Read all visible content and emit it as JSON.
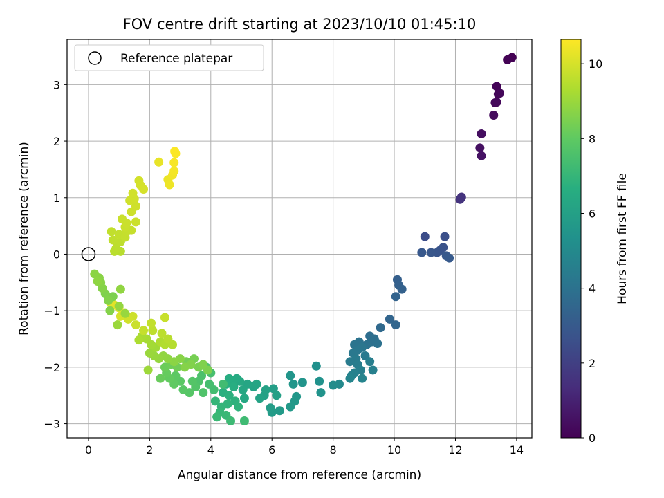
{
  "chart_data": {
    "type": "scatter",
    "title": "FOV centre drift starting at 2023/10/10 01:45:10",
    "xlabel": "Angular distance from reference (arcmin)",
    "ylabel": "Rotation from reference (arcmin)",
    "xlim": [
      -0.7,
      14.5
    ],
    "ylim": [
      -3.25,
      3.8
    ],
    "xticks": [
      0,
      2,
      4,
      6,
      8,
      10,
      12,
      14
    ],
    "yticks": [
      -3,
      -2,
      -1,
      0,
      1,
      2,
      3
    ],
    "xtick_labels": [
      "0",
      "2",
      "4",
      "6",
      "8",
      "10",
      "12",
      "14"
    ],
    "ytick_labels": [
      "−3",
      "−2",
      "−1",
      "0",
      "1",
      "2",
      "3"
    ],
    "grid": true,
    "colormap": "viridis",
    "colorbar": {
      "label": "Hours from first FF file",
      "range": [
        0,
        10.65
      ],
      "ticks": [
        0,
        2,
        4,
        6,
        8,
        10
      ],
      "tick_labels": [
        "0",
        "2",
        "4",
        "6",
        "8",
        "10"
      ]
    },
    "legend": {
      "location": "upper-left",
      "entries": [
        "Reference platepar"
      ]
    },
    "reference_point": {
      "x": 0,
      "y": 0
    },
    "points": [
      [
        13.85,
        3.48,
        0.0
      ],
      [
        13.7,
        3.44,
        0.05
      ],
      [
        13.35,
        2.97,
        0.1
      ],
      [
        13.4,
        2.83,
        0.15
      ],
      [
        13.45,
        2.85,
        0.18
      ],
      [
        13.3,
        2.68,
        0.22
      ],
      [
        13.35,
        2.69,
        0.25
      ],
      [
        13.25,
        2.46,
        0.3
      ],
      [
        12.85,
        2.13,
        0.4
      ],
      [
        12.8,
        1.88,
        0.45
      ],
      [
        12.85,
        1.74,
        0.5
      ],
      [
        12.2,
        1.01,
        1.5
      ],
      [
        12.15,
        0.97,
        1.55
      ],
      [
        12.18,
        0.99,
        1.6
      ],
      [
        11.0,
        0.31,
        2.5
      ],
      [
        11.65,
        0.31,
        2.6
      ],
      [
        11.6,
        0.12,
        2.7
      ],
      [
        11.5,
        0.07,
        2.75
      ],
      [
        11.4,
        0.03,
        2.8
      ],
      [
        11.2,
        0.03,
        2.85
      ],
      [
        10.9,
        0.03,
        2.9
      ],
      [
        11.7,
        -0.03,
        2.95
      ],
      [
        11.8,
        -0.07,
        3.0
      ],
      [
        10.1,
        -0.45,
        3.2
      ],
      [
        10.15,
        -0.55,
        3.25
      ],
      [
        10.25,
        -0.62,
        3.3
      ],
      [
        10.05,
        -0.75,
        3.35
      ],
      [
        9.85,
        -1.15,
        3.45
      ],
      [
        10.05,
        -1.25,
        3.5
      ],
      [
        9.55,
        -1.3,
        3.6
      ],
      [
        9.2,
        -1.45,
        3.8
      ],
      [
        9.35,
        -1.5,
        3.85
      ],
      [
        9.25,
        -1.55,
        3.9
      ],
      [
        9.45,
        -1.58,
        3.95
      ],
      [
        9.1,
        -1.6,
        4.0
      ],
      [
        8.85,
        -1.55,
        4.05
      ],
      [
        8.7,
        -1.6,
        4.1
      ],
      [
        8.95,
        -1.65,
        4.15
      ],
      [
        8.8,
        -1.7,
        4.2
      ],
      [
        8.65,
        -1.75,
        4.25
      ],
      [
        9.05,
        -1.8,
        4.3
      ],
      [
        8.75,
        -1.85,
        4.35
      ],
      [
        8.55,
        -1.9,
        4.4
      ],
      [
        8.8,
        -1.95,
        4.45
      ],
      [
        9.2,
        -1.9,
        4.5
      ],
      [
        8.9,
        -2.05,
        4.55
      ],
      [
        9.3,
        -2.05,
        4.6
      ],
      [
        8.7,
        -2.1,
        4.65
      ],
      [
        8.6,
        -2.15,
        4.7
      ],
      [
        8.95,
        -2.2,
        4.75
      ],
      [
        8.55,
        -2.2,
        4.8
      ],
      [
        8.2,
        -2.3,
        5.0
      ],
      [
        8.0,
        -2.32,
        5.1
      ],
      [
        7.45,
        -1.98,
        5.3
      ],
      [
        7.55,
        -2.25,
        5.35
      ],
      [
        7.6,
        -2.45,
        5.4
      ],
      [
        7.0,
        -2.27,
        5.45
      ],
      [
        6.6,
        -2.15,
        5.5
      ],
      [
        6.7,
        -2.3,
        5.55
      ],
      [
        6.8,
        -2.52,
        5.6
      ],
      [
        6.75,
        -2.6,
        5.65
      ],
      [
        6.6,
        -2.7,
        5.7
      ],
      [
        6.25,
        -2.77,
        5.75
      ],
      [
        6.0,
        -2.8,
        5.8
      ],
      [
        5.95,
        -2.72,
        5.85
      ],
      [
        6.05,
        -2.38,
        5.9
      ],
      [
        6.15,
        -2.5,
        5.95
      ],
      [
        5.75,
        -2.5,
        6.0
      ],
      [
        5.8,
        -2.4,
        6.05
      ],
      [
        5.6,
        -2.55,
        6.1
      ],
      [
        5.4,
        -2.35,
        6.15
      ],
      [
        5.5,
        -2.3,
        6.2
      ],
      [
        5.2,
        -2.3,
        6.25
      ],
      [
        5.05,
        -2.4,
        6.3
      ],
      [
        5.1,
        -2.55,
        6.35
      ],
      [
        4.95,
        -2.25,
        6.4
      ],
      [
        4.85,
        -2.2,
        6.45
      ],
      [
        4.7,
        -2.25,
        6.5
      ],
      [
        4.6,
        -2.2,
        6.55
      ],
      [
        4.75,
        -2.35,
        6.6
      ],
      [
        4.5,
        -2.3,
        6.65
      ],
      [
        4.4,
        -2.45,
        6.7
      ],
      [
        4.6,
        -2.5,
        6.75
      ],
      [
        4.8,
        -2.6,
        6.8
      ],
      [
        4.9,
        -2.7,
        6.85
      ],
      [
        4.55,
        -2.65,
        6.9
      ],
      [
        4.35,
        -2.7,
        6.95
      ],
      [
        4.15,
        -2.6,
        7.0
      ],
      [
        4.3,
        -2.8,
        7.05
      ],
      [
        4.5,
        -2.85,
        7.1
      ],
      [
        4.2,
        -2.88,
        7.15
      ],
      [
        4.65,
        -2.95,
        7.2
      ],
      [
        5.1,
        -2.95,
        7.25
      ],
      [
        4.4,
        -2.3,
        7.3
      ],
      [
        4.1,
        -2.4,
        7.35
      ],
      [
        3.95,
        -2.3,
        7.4
      ],
      [
        4.0,
        -2.1,
        7.45
      ],
      [
        3.85,
        -2.0,
        7.5
      ],
      [
        3.7,
        -2.15,
        7.55
      ],
      [
        3.6,
        -2.25,
        7.6
      ],
      [
        3.75,
        -2.45,
        7.65
      ],
      [
        3.5,
        -2.35,
        7.7
      ],
      [
        3.4,
        -2.25,
        7.75
      ],
      [
        3.3,
        -2.45,
        7.8
      ],
      [
        3.1,
        -2.4,
        7.85
      ],
      [
        3.0,
        -2.25,
        7.9
      ],
      [
        2.85,
        -2.15,
        7.95
      ],
      [
        2.8,
        -2.3,
        8.0
      ],
      [
        2.65,
        -2.2,
        8.05
      ],
      [
        2.55,
        -2.1,
        8.1
      ],
      [
        2.35,
        -2.2,
        8.15
      ],
      [
        2.5,
        -2.0,
        8.2
      ],
      [
        2.7,
        -1.95,
        8.25
      ],
      [
        2.9,
        -2.0,
        8.3
      ],
      [
        3.2,
        -1.9,
        8.35
      ],
      [
        3.45,
        -1.85,
        8.4
      ],
      [
        3.6,
        -2.0,
        8.45
      ],
      [
        3.9,
        -2.05,
        8.5
      ],
      [
        3.75,
        -1.95,
        8.55
      ],
      [
        3.35,
        -1.95,
        8.6
      ],
      [
        3.15,
        -2.0,
        8.65
      ],
      [
        3.0,
        -1.85,
        8.7
      ],
      [
        2.8,
        -1.9,
        8.75
      ],
      [
        2.6,
        -1.85,
        8.8
      ],
      [
        2.45,
        -1.8,
        8.85
      ],
      [
        2.3,
        -1.85,
        8.9
      ],
      [
        2.15,
        -1.8,
        8.95
      ],
      [
        2.0,
        -1.75,
        9.0
      ],
      [
        1.95,
        -2.05,
        9.05
      ],
      [
        2.2,
        -1.65,
        9.1
      ],
      [
        2.05,
        -1.6,
        9.15
      ],
      [
        1.9,
        -1.5,
        9.2
      ],
      [
        1.75,
        -1.45,
        9.25
      ],
      [
        1.65,
        -1.52,
        9.3
      ],
      [
        2.35,
        -1.55,
        9.35
      ],
      [
        2.5,
        -1.6,
        9.4
      ],
      [
        2.75,
        -1.6,
        9.45
      ],
      [
        2.6,
        -1.5,
        9.5
      ],
      [
        2.4,
        -1.4,
        9.55
      ],
      [
        2.1,
        -1.35,
        9.6
      ],
      [
        2.05,
        -1.22,
        9.65
      ],
      [
        1.8,
        -1.35,
        9.7
      ],
      [
        2.5,
        -1.12,
        9.75
      ],
      [
        1.55,
        -1.25,
        9.8
      ],
      [
        1.45,
        -1.1,
        9.85
      ],
      [
        1.3,
        -1.15,
        9.9
      ],
      [
        1.2,
        -1.05,
        9.95
      ],
      [
        1.05,
        -1.1,
        10.0
      ],
      [
        0.95,
        -1.25,
        10.05
      ],
      [
        1.0,
        -0.95,
        10.1
      ],
      [
        0.85,
        -0.9,
        10.15
      ],
      [
        0.7,
        -0.85,
        10.2
      ]
    ],
    "points_upper": [
      [
        0.8,
        -0.75,
        8.5
      ],
      [
        0.55,
        -0.7,
        8.55
      ],
      [
        0.65,
        -0.82,
        8.6
      ],
      [
        0.7,
        -1.0,
        8.62
      ],
      [
        0.45,
        -0.6,
        8.65
      ],
      [
        0.4,
        -0.5,
        8.7
      ],
      [
        0.35,
        -0.42,
        8.72
      ],
      [
        0.2,
        -0.35,
        8.75
      ],
      [
        0.3,
        -0.48,
        8.8
      ],
      [
        1.05,
        -0.62,
        8.85
      ],
      [
        1.0,
        -0.92,
        8.9
      ],
      [
        1.2,
        -1.05,
        8.95
      ],
      [
        0.95,
        -1.25,
        9.0
      ],
      [
        1.05,
        0.05,
        9.5
      ],
      [
        0.85,
        0.05,
        9.52
      ],
      [
        0.9,
        0.1,
        9.55
      ],
      [
        0.95,
        0.2,
        9.57
      ],
      [
        1.05,
        0.22,
        9.6
      ],
      [
        0.8,
        0.25,
        9.62
      ],
      [
        0.75,
        0.4,
        9.65
      ],
      [
        1.0,
        0.35,
        9.67
      ],
      [
        1.2,
        0.3,
        9.7
      ],
      [
        1.25,
        0.4,
        9.72
      ],
      [
        1.4,
        0.42,
        9.74
      ],
      [
        1.2,
        0.48,
        9.76
      ],
      [
        1.1,
        0.62,
        9.78
      ],
      [
        1.25,
        0.55,
        9.8
      ],
      [
        1.55,
        0.57,
        9.82
      ],
      [
        1.4,
        0.75,
        9.84
      ],
      [
        1.55,
        0.85,
        9.86
      ],
      [
        1.35,
        0.95,
        9.88
      ],
      [
        1.5,
        0.98,
        9.9
      ],
      [
        1.45,
        1.08,
        9.92
      ],
      [
        1.65,
        1.3,
        9.94
      ],
      [
        1.7,
        1.22,
        9.96
      ],
      [
        1.8,
        1.15,
        9.98
      ],
      [
        2.3,
        1.63,
        10.3
      ],
      [
        2.6,
        1.32,
        10.35
      ],
      [
        2.65,
        1.23,
        10.4
      ],
      [
        2.75,
        1.4,
        10.45
      ],
      [
        2.8,
        1.47,
        10.5
      ],
      [
        2.8,
        1.62,
        10.55
      ],
      [
        2.85,
        1.78,
        10.6
      ],
      [
        2.82,
        1.82,
        10.62
      ]
    ]
  }
}
